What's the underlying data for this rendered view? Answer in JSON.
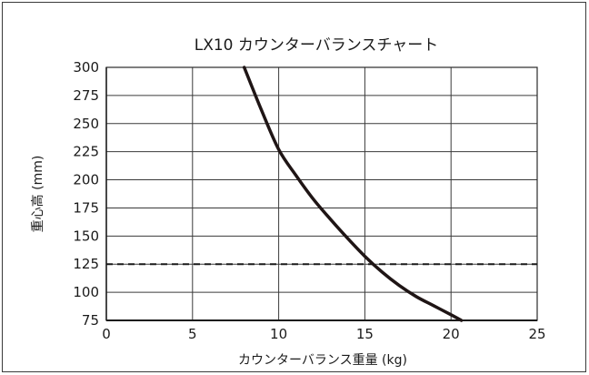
{
  "chart_data": {
    "type": "line",
    "title": "LX10 カウンターバランスチャート",
    "xlabel": "カウンターバランス重量 (kg)",
    "ylabel": "重心高 (mm)",
    "xlim": [
      0,
      25
    ],
    "ylim": [
      75,
      300
    ],
    "xticks": [
      "0",
      "5",
      "10",
      "15",
      "20",
      "25"
    ],
    "yticks": [
      "75",
      "100",
      "125",
      "150",
      "175",
      "200",
      "225",
      "250",
      "275",
      "300"
    ],
    "grid": true,
    "series": [
      {
        "style": "solid",
        "color": "#1f1515",
        "x": [
          8,
          9,
          10,
          11,
          12,
          13,
          14,
          15,
          16,
          17,
          18,
          19,
          20,
          20.6
        ],
        "y": [
          300,
          262,
          227,
          204,
          183,
          165,
          148,
          132,
          118,
          106,
          96,
          88,
          80,
          75
        ]
      }
    ],
    "reference_line": {
      "style": "dashed",
      "color": "#1a1a1a",
      "y": 125
    }
  }
}
